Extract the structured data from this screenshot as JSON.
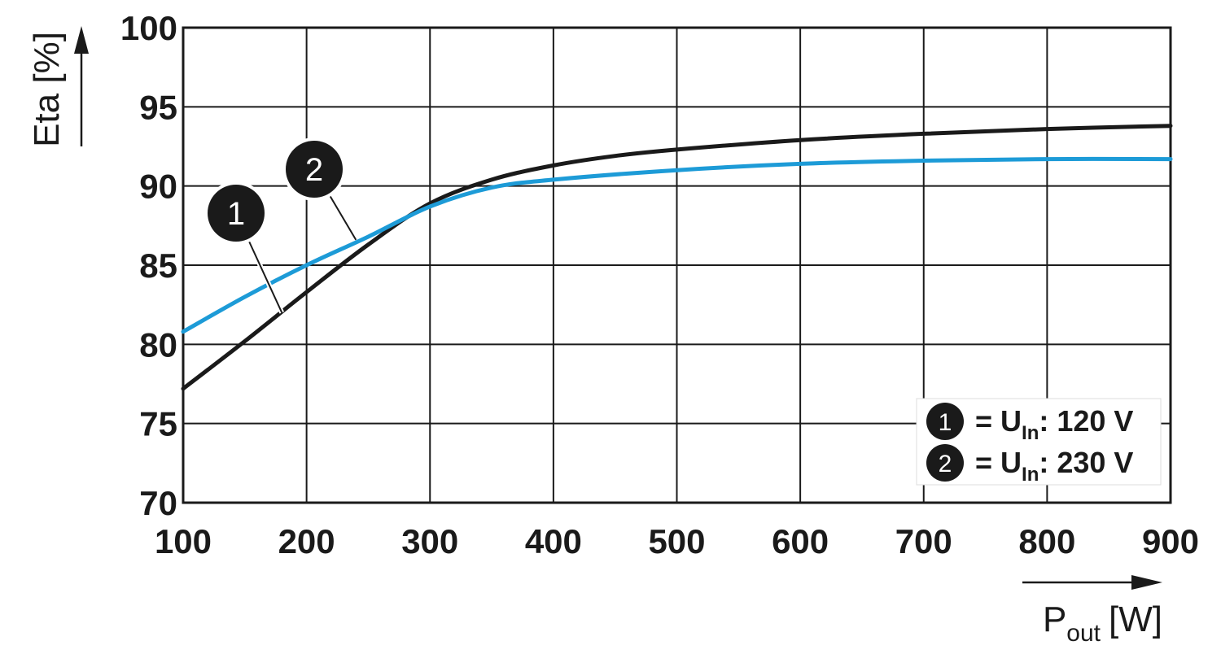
{
  "chart_data": {
    "type": "line",
    "x_ticks": [
      "100",
      "200",
      "300",
      "400",
      "500",
      "600",
      "700",
      "800",
      "900"
    ],
    "y_ticks": [
      "100",
      "95",
      "90",
      "85",
      "80",
      "75",
      "70"
    ],
    "xlim": [
      100,
      900
    ],
    "ylim": [
      70,
      100
    ],
    "grid": true,
    "ylabel": "Eta [%]",
    "xlabel": {
      "main": "P",
      "sub": "out",
      "unit": "[W]"
    },
    "series": [
      {
        "marker": "1",
        "color": "#1a1a1a",
        "x": [
          100,
          150,
          200,
          250,
          300,
          350,
          400,
          450,
          500,
          600,
          700,
          800,
          900
        ],
        "y": [
          77.2,
          80.2,
          83.3,
          86.3,
          88.9,
          90.4,
          91.3,
          91.9,
          92.3,
          92.9,
          93.3,
          93.6,
          93.8
        ]
      },
      {
        "marker": "2",
        "color": "#1d9bd7",
        "x": [
          100,
          150,
          200,
          250,
          300,
          350,
          400,
          500,
          600,
          700,
          800,
          900
        ],
        "y": [
          80.8,
          83.0,
          85.0,
          86.8,
          88.7,
          89.9,
          90.4,
          91.0,
          91.4,
          91.6,
          91.7,
          91.7
        ]
      }
    ],
    "legend": {
      "position": "bottom-right",
      "entries": [
        {
          "marker": "1",
          "text_prefix": "= U",
          "text_sub": "In",
          "text_suffix": ": 120 V"
        },
        {
          "marker": "2",
          "text_prefix": "= U",
          "text_sub": "In",
          "text_suffix": ": 230 V"
        }
      ]
    }
  }
}
